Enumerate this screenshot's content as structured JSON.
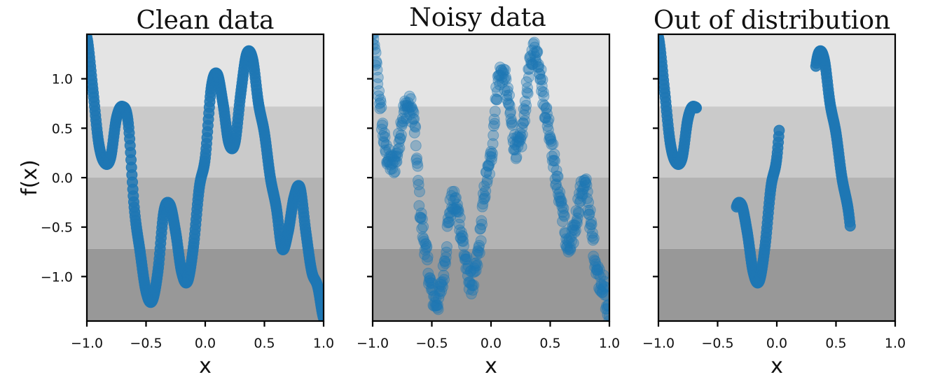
{
  "chart_data": [
    {
      "type": "scatter",
      "title": "Clean data",
      "variant": "clean",
      "xlabel": "x",
      "ylabel": "f(x)",
      "xlim": [
        -1.0,
        1.0
      ],
      "ylim": [
        -1.45,
        1.45
      ],
      "xticks": [
        -1.0,
        -0.5,
        0.0,
        0.5,
        1.0
      ],
      "xtick_labels": [
        "−1.0",
        "−0.5",
        "0.0",
        "0.5",
        "1.0"
      ],
      "yticks": [
        1.0,
        0.5,
        0.0,
        -0.5,
        -1.0
      ],
      "ytick_labels": [
        "1.0",
        "0.5",
        "0.0",
        "−0.5",
        "−1.0"
      ],
      "bands": [
        0.72,
        0.0,
        -0.72
      ],
      "x_ranges": [
        [
          -1.0,
          1.0
        ]
      ],
      "noise": 0.0,
      "point_opacity": 0.85,
      "point_color": "#1f77b4"
    },
    {
      "type": "scatter",
      "title": "Noisy data",
      "variant": "noisy",
      "xlabel": "x",
      "xlim": [
        -1.0,
        1.0
      ],
      "ylim": [
        -1.45,
        1.45
      ],
      "xticks": [
        -1.0,
        -0.5,
        0.0,
        0.5,
        1.0
      ],
      "xtick_labels": [
        "−1.0",
        "−0.5",
        "0.0",
        "0.5",
        "1.0"
      ],
      "yticks": [
        1.0,
        0.5,
        0.0,
        -0.5,
        -1.0
      ],
      "bands": [
        0.72,
        0.0,
        -0.72
      ],
      "x_ranges": [
        [
          -1.0,
          1.0
        ]
      ],
      "noise": 0.12,
      "point_opacity": 0.35,
      "point_color": "#1f77b4"
    },
    {
      "type": "scatter",
      "title": "Out of distribution",
      "variant": "ood",
      "xlabel": "x",
      "xlim": [
        -1.0,
        1.0
      ],
      "ylim": [
        -1.45,
        1.45
      ],
      "xticks": [
        -1.0,
        -0.5,
        0.0,
        0.5,
        1.0
      ],
      "xtick_labels": [
        "−1.0",
        "−0.5",
        "0.0",
        "0.5",
        "1.0"
      ],
      "yticks": [
        1.0,
        0.5,
        0.0,
        -0.5,
        -1.0
      ],
      "bands": [
        0.72,
        0.0,
        -0.72
      ],
      "x_ranges": [
        [
          -1.0,
          -0.68
        ],
        [
          -0.34,
          0.02
        ],
        [
          0.33,
          0.62
        ]
      ],
      "noise": 0.0,
      "point_opacity": 0.85,
      "point_color": "#1f77b4"
    }
  ],
  "function_samples": {
    "x": [
      -1.0,
      -0.95,
      -0.9,
      -0.85,
      -0.8,
      -0.75,
      -0.7,
      -0.65,
      -0.6,
      -0.55,
      -0.5,
      -0.45,
      -0.4,
      -0.35,
      -0.3,
      -0.25,
      -0.2,
      -0.15,
      -0.1,
      -0.05,
      0.0,
      0.05,
      0.1,
      0.15,
      0.2,
      0.25,
      0.3,
      0.35,
      0.4,
      0.45,
      0.5,
      0.55,
      0.6,
      0.65,
      0.7,
      0.75,
      0.8,
      0.85,
      0.9,
      0.95,
      1.0
    ],
    "y": [
      1.42,
      0.9,
      0.35,
      0.15,
      0.2,
      0.6,
      0.72,
      0.55,
      -0.3,
      -0.75,
      -1.15,
      -1.25,
      -0.95,
      -0.35,
      -0.27,
      -0.55,
      -0.95,
      -1.05,
      -0.7,
      -0.1,
      0.2,
      0.9,
      1.05,
      0.75,
      0.35,
      0.35,
      0.85,
      1.25,
      1.2,
      0.75,
      0.45,
      0.0,
      -0.3,
      -0.72,
      -0.55,
      -0.2,
      -0.1,
      -0.55,
      -0.95,
      -1.1,
      -1.42
    ]
  },
  "colors": {
    "band_top": "#e4e4e4",
    "band_upper_mid": "#cacaca",
    "band_lower_mid": "#b3b3b3",
    "band_bottom": "#989898"
  }
}
